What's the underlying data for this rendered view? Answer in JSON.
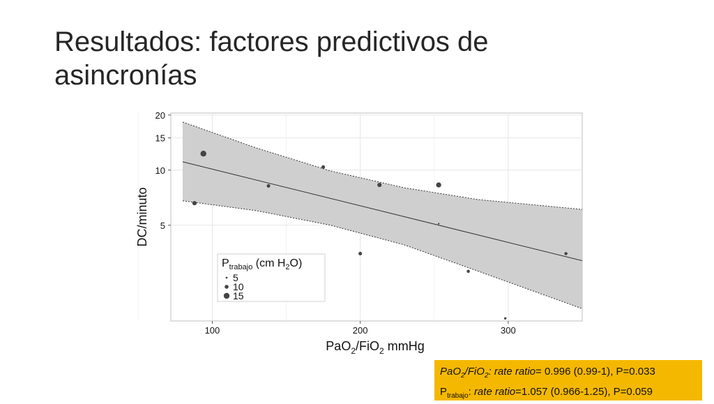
{
  "slide": {
    "title_line1": "Resultados: factores predictivos de",
    "title_line2": "asincronías"
  },
  "chart_data": {
    "type": "scatter",
    "ylabel": "DC/minuto",
    "xlabel_base": "PaO",
    "xlabel_sub": "2",
    "xlabel_mid": "/FiO",
    "xlabel_sub2": "2",
    "xlabel_unit": " mmHg",
    "y_scale": "log",
    "xlim": [
      72,
      350
    ],
    "ylim": [
      1.5,
      20.5
    ],
    "x_ticks": [
      100,
      200,
      300
    ],
    "x_tick_labels": [
      "100",
      "200",
      "300"
    ],
    "y_ticks": [
      5,
      10,
      15,
      20
    ],
    "y_tick_labels": [
      "5",
      "10",
      "15",
      "20"
    ],
    "legend": {
      "title_main": "P",
      "title_sub": "trabajo",
      "title_rest": " (cm H",
      "title_sub2": "2",
      "title_end": "O)",
      "placement": "bottom-left",
      "entries": [
        {
          "label": "5",
          "size": 5
        },
        {
          "label": "10",
          "size": 10
        },
        {
          "label": "15",
          "size": 15
        }
      ]
    },
    "points": [
      {
        "x": 88,
        "y": 6.6,
        "size": 11
      },
      {
        "x": 94,
        "y": 12.3,
        "size": 15
      },
      {
        "x": 138,
        "y": 8.2,
        "size": 9
      },
      {
        "x": 175,
        "y": 10.4,
        "size": 9
      },
      {
        "x": 200,
        "y": 3.5,
        "size": 9
      },
      {
        "x": 213,
        "y": 8.3,
        "size": 11
      },
      {
        "x": 253,
        "y": 8.3,
        "size": 13
      },
      {
        "x": 253,
        "y": 5.1,
        "size": 4
      },
      {
        "x": 273,
        "y": 2.8,
        "size": 8
      },
      {
        "x": 298,
        "y": 1.55,
        "size": 6
      },
      {
        "x": 339,
        "y": 3.5,
        "size": 8
      }
    ],
    "fit_line": [
      [
        80,
        11.1
      ],
      [
        350,
        3.2
      ]
    ],
    "ci_upper": [
      [
        80,
        18.3
      ],
      [
        130,
        13.2
      ],
      [
        180,
        9.9
      ],
      [
        230,
        8.0
      ],
      [
        280,
        6.9
      ],
      [
        350,
        6.1
      ]
    ],
    "ci_lower": [
      [
        80,
        6.8
      ],
      [
        130,
        6.0
      ],
      [
        180,
        5.0
      ],
      [
        230,
        3.9
      ],
      [
        280,
        2.8
      ],
      [
        350,
        1.75
      ]
    ],
    "grid": true
  },
  "stats": {
    "line1_a": "PaO",
    "line1_sub1": "2",
    "line1_b": "/FiO",
    "line1_sub2": "2",
    "line1_c": ": rate ratio",
    "line1_d": "= 0.996 (0.99-1), P=0.033",
    "line2_a": "P",
    "line2_sub": "trabajo",
    "line2_b": ": ",
    "line2_c": "rate ratio",
    "line2_d": "=1.057 (0.966-1.25), P=0.059"
  },
  "colors": {
    "panel_bg": "#ffffff",
    "grid_major": "#e6e6e6",
    "band_fill": "#cfcfcf",
    "line": "#333333",
    "point": "#444444",
    "stats_bg": "#f5b800"
  }
}
